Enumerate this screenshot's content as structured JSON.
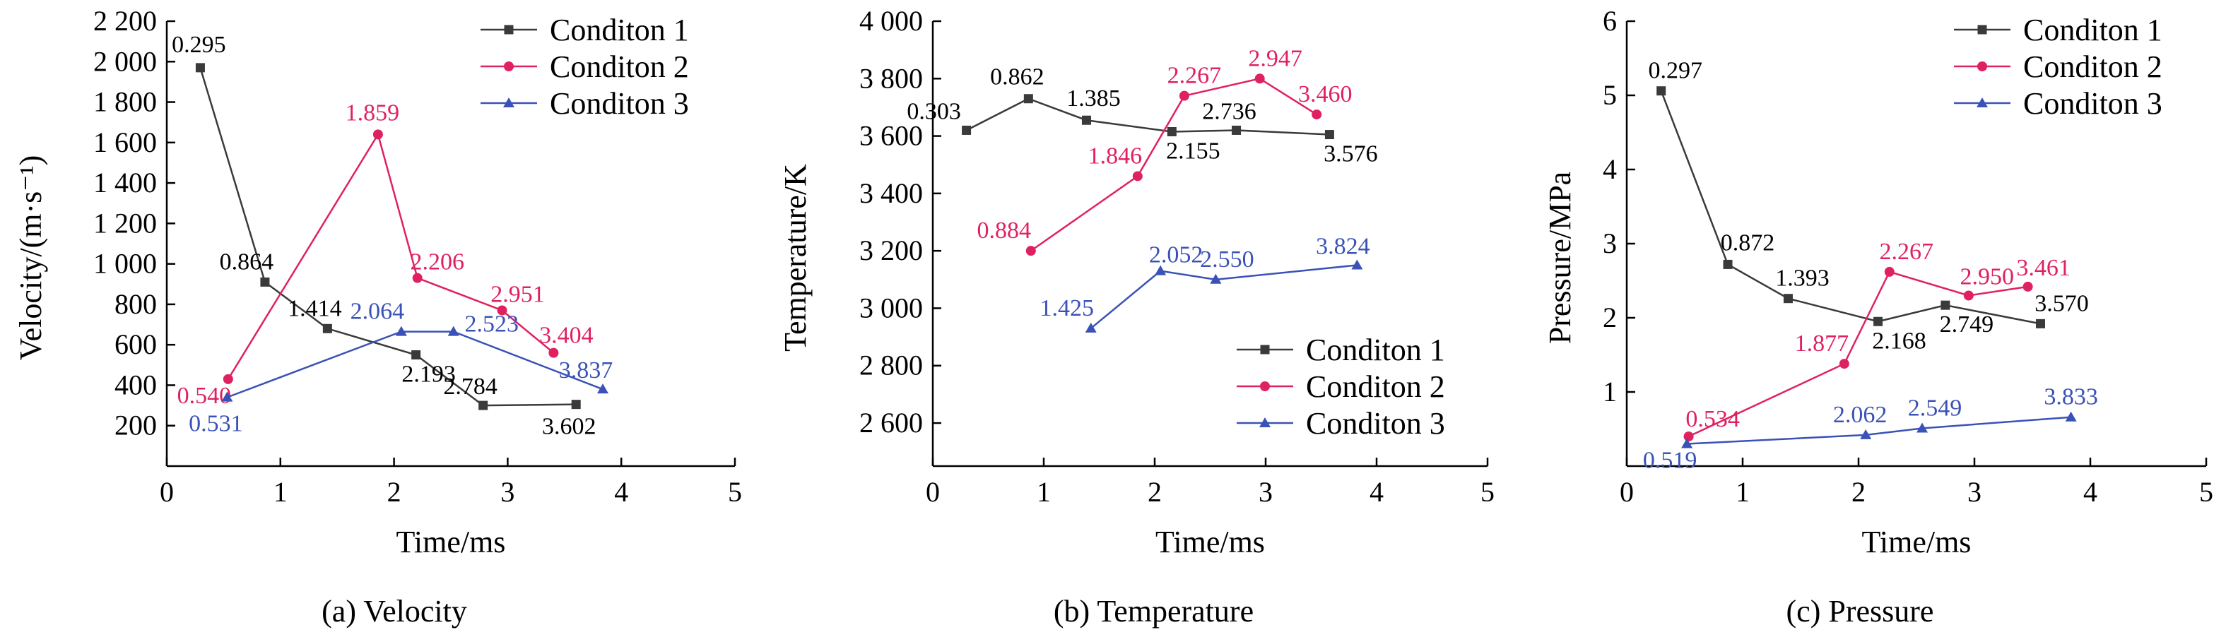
{
  "colors": {
    "series1": "#3a3a3a",
    "series2": "#e0215f",
    "series3": "#3a52b8",
    "axis": "#000000",
    "text": "#000000"
  },
  "chart_data": [
    {
      "type": "line",
      "caption": "(a) Velocity",
      "xlabel": "Time/ms",
      "ylabel": "Velocity/(m·s⁻¹)",
      "xlim": [
        0,
        5
      ],
      "ylim": [
        0,
        2200
      ],
      "xticks": [
        0,
        1,
        2,
        3,
        4,
        5
      ],
      "xtick_labels": [
        "0",
        "1",
        "2",
        "3",
        "4",
        "5"
      ],
      "yticks": [
        200,
        400,
        600,
        800,
        1000,
        1200,
        1400,
        1600,
        1800,
        2000,
        2200
      ],
      "ytick_labels": [
        "200",
        "400",
        "600",
        "800",
        "1 000",
        "1 200",
        "1 400",
        "1 600",
        "1 800",
        "2 000",
        "2 200"
      ],
      "legend": "top-right",
      "grid": false,
      "series": [
        {
          "name": "Conditon 1",
          "marker": "square",
          "x": [
            0.295,
            0.864,
            1.414,
            2.193,
            2.784,
            3.602
          ],
          "y": [
            1970,
            910,
            680,
            550,
            300,
            305
          ],
          "labels": [
            "0.295",
            "0.864",
            "1.414",
            "2.193",
            "2.784",
            "3.602"
          ]
        },
        {
          "name": "Conditon 2",
          "marker": "circle",
          "x": [
            0.54,
            1.859,
            2.206,
            2.951,
            3.404
          ],
          "y": [
            430,
            1640,
            930,
            770,
            560
          ],
          "labels": [
            "0.540",
            "1.859",
            "2.206",
            "2.951",
            "3.404"
          ]
        },
        {
          "name": "Conditon 3",
          "marker": "triangle",
          "x": [
            0.531,
            2.064,
            2.523,
            3.837
          ],
          "y": [
            340,
            665,
            665,
            380
          ],
          "labels": [
            "0.531",
            "2.064",
            "2.523",
            "3.837"
          ]
        }
      ]
    },
    {
      "type": "line",
      "caption": "(b) Temperature",
      "xlabel": "Time/ms",
      "ylabel": "Temperature/K",
      "xlim": [
        0,
        5
      ],
      "ylim": [
        2450,
        4000
      ],
      "xticks": [
        0,
        1,
        2,
        3,
        4,
        5
      ],
      "xtick_labels": [
        "0",
        "1",
        "2",
        "3",
        "4",
        "5"
      ],
      "yticks": [
        2600,
        2800,
        3000,
        3200,
        3400,
        3600,
        3800,
        4000
      ],
      "ytick_labels": [
        "2 600",
        "2 800",
        "3 000",
        "3 200",
        "3 400",
        "3 600",
        "3 800",
        "4 000"
      ],
      "legend": "bottom-right",
      "grid": false,
      "series": [
        {
          "name": "Conditon 1",
          "marker": "square",
          "x": [
            0.303,
            0.862,
            1.385,
            2.155,
            2.736,
            3.576
          ],
          "y": [
            3620,
            3730,
            3655,
            3615,
            3620,
            3605
          ],
          "labels": [
            "0.303",
            "0.862",
            "1.385",
            "2.155",
            "2.736",
            "3.576"
          ]
        },
        {
          "name": "Conditon 2",
          "marker": "circle",
          "x": [
            0.884,
            1.846,
            2.267,
            2.947,
            3.46
          ],
          "y": [
            3200,
            3460,
            3740,
            3800,
            3675
          ],
          "labels": [
            "0.884",
            "1.846",
            "2.267",
            "2.947",
            "3.460"
          ]
        },
        {
          "name": "Conditon 3",
          "marker": "triangle",
          "x": [
            1.425,
            2.052,
            2.55,
            3.824
          ],
          "y": [
            2930,
            3130,
            3100,
            3150
          ],
          "labels": [
            "1.425",
            "2.052",
            "2.550",
            "3.824"
          ]
        }
      ]
    },
    {
      "type": "line",
      "caption": "(c) Pressure",
      "xlabel": "Time/ms",
      "ylabel": "Pressure/MPa",
      "xlim": [
        0,
        5
      ],
      "ylim": [
        0,
        6
      ],
      "xticks": [
        0,
        1,
        2,
        3,
        4,
        5
      ],
      "xtick_labels": [
        "0",
        "1",
        "2",
        "3",
        "4",
        "5"
      ],
      "yticks": [
        1,
        2,
        3,
        4,
        5,
        6
      ],
      "ytick_labels": [
        "1",
        "2",
        "3",
        "4",
        "5",
        "6"
      ],
      "legend": "top-right",
      "grid": false,
      "series": [
        {
          "name": "Conditon 1",
          "marker": "square",
          "x": [
            0.297,
            0.872,
            1.393,
            2.168,
            2.749,
            3.57
          ],
          "y": [
            5.06,
            2.72,
            2.26,
            1.95,
            2.17,
            1.92
          ],
          "labels": [
            "0.297",
            "0.872",
            "1.393",
            "2.168",
            "2.749",
            "3.570"
          ]
        },
        {
          "name": "Conditon 2",
          "marker": "circle",
          "x": [
            0.534,
            1.877,
            2.267,
            2.95,
            3.461
          ],
          "y": [
            0.4,
            1.38,
            2.62,
            2.3,
            2.42
          ],
          "labels": [
            "0.534",
            "1.877",
            "2.267",
            "2.950",
            "3.461"
          ]
        },
        {
          "name": "Conditon 3",
          "marker": "triangle",
          "x": [
            0.519,
            2.062,
            2.549,
            3.833
          ],
          "y": [
            0.3,
            0.42,
            0.51,
            0.66
          ],
          "labels": [
            "0.519",
            "2.062",
            "2.549",
            "3.833"
          ]
        }
      ]
    }
  ]
}
